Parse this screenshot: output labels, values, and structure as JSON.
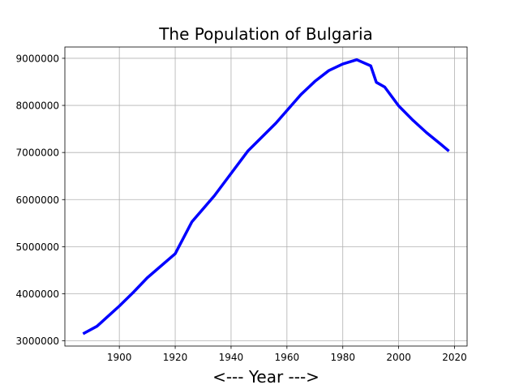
{
  "chart_data": {
    "type": "line",
    "title": "The Population of Bulgaria",
    "xlabel": "<--- Year --->",
    "ylabel": "",
    "grid": true,
    "xlim": [
      1880.5,
      2024.5
    ],
    "ylim": [
      2890000,
      9240000
    ],
    "xticks": [
      1900,
      1920,
      1940,
      1960,
      1980,
      2000,
      2020
    ],
    "yticks": [
      3000000,
      4000000,
      5000000,
      6000000,
      7000000,
      8000000,
      9000000
    ],
    "colors": {
      "line": "#0000ff",
      "grid": "#b0b0b0"
    },
    "x": [
      1887,
      1892,
      1900,
      1905,
      1910,
      1920,
      1926,
      1934,
      1946,
      1956,
      1965,
      1970,
      1975,
      1980,
      1985,
      1990,
      1992,
      1995,
      2000,
      2005,
      2010,
      2015,
      2018
    ],
    "series": [
      {
        "values": [
          3150000,
          3310000,
          3740000,
          4030000,
          4340000,
          4850000,
          5530000,
          6080000,
          7030000,
          7620000,
          8230000,
          8510000,
          8740000,
          8880000,
          8970000,
          8840000,
          8490000,
          8390000,
          7990000,
          7690000,
          7420000,
          7180000,
          7030000
        ]
      }
    ]
  }
}
